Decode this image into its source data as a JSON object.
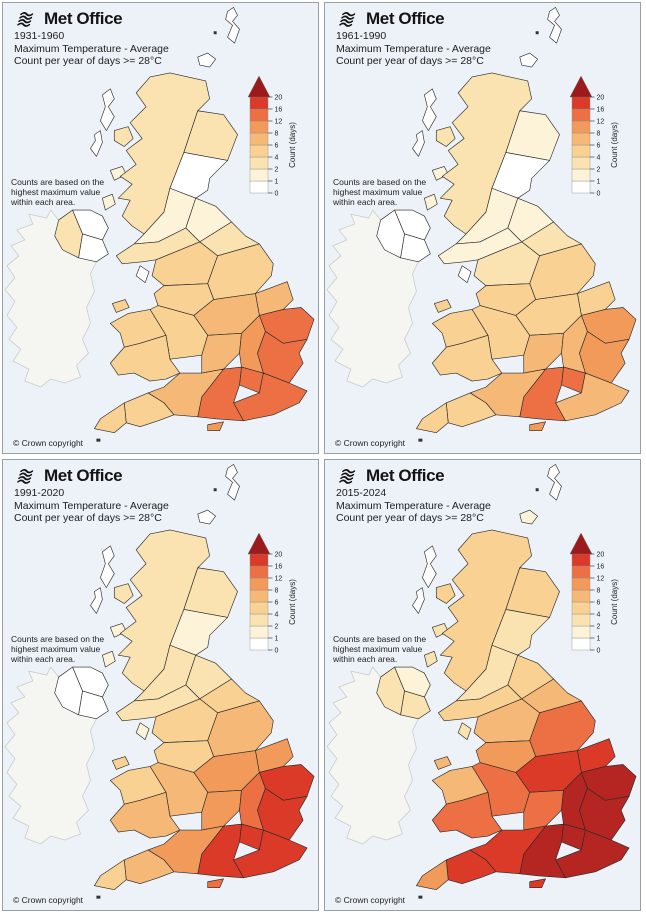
{
  "shared": {
    "brand": "Met Office",
    "subtitle_line1": "Maximum Temperature - Average",
    "subtitle_line2": "Count per year of days >= 28°C",
    "note": "Counts are based on the\nhighest maximum value\nwithin each area.",
    "copyright": "© Crown copyright"
  },
  "chart_data": {
    "type": "choropleth",
    "title": "Maximum Temperature - Average, Count per year of days >= 28°C",
    "layout": "2x2 grid of UK maps, one per period",
    "panels": [
      {
        "period": "1931-1960"
      },
      {
        "period": "1961-1990"
      },
      {
        "period": "1991-2020"
      },
      {
        "period": "2015-2024"
      }
    ],
    "legend": {
      "label": "Count (days)",
      "ticks": [
        0,
        1,
        2,
        4,
        6,
        8,
        12,
        16,
        20
      ],
      "bucket_ranges": [
        "0-1",
        "1-2",
        "2-4",
        "4-6",
        "6-8",
        "8-12",
        "12-16",
        "16-20",
        ">20"
      ],
      "bucket_colors": [
        "#ffffff",
        "#fdf3d8",
        "#fae3b1",
        "#f8d193",
        "#f6b877",
        "#f29a5a",
        "#ec7044",
        "#da3a27",
        "#b52521"
      ],
      "arrow_color": "#9c1a1c",
      "position": "top-right of each map, vertical bar with arrow cap"
    },
    "colors": {
      "sea": "#ecf2f7",
      "no_data_land": "#f5f5f1",
      "region_border": "#2b2b2b",
      "no_data_border": "#c7cdcc",
      "panel_border": "#98a0a6"
    },
    "region_buckets_note": "Per-region color-bucket index (into bucket_colors/bucket_ranges), estimated from map shading; array order follows panels[] (1931-1960, 1961-1990, 1991-2020, 2015-2024).",
    "region_buckets": {
      "shetland": [
        0,
        0,
        0,
        0
      ],
      "orkney": [
        0,
        0,
        0,
        1
      ],
      "outer_hebrides_north": [
        0,
        0,
        0,
        0
      ],
      "outer_hebrides_south": [
        0,
        0,
        0,
        0
      ],
      "skye": [
        2,
        2,
        2,
        3
      ],
      "mull": [
        1,
        1,
        1,
        2
      ],
      "islay": [
        1,
        1,
        1,
        2
      ],
      "highlands": [
        2,
        2,
        2,
        3
      ],
      "ne_scotland": [
        2,
        1,
        2,
        3
      ],
      "central_scotland": [
        0,
        0,
        1,
        2
      ],
      "sw_scotland": [
        1,
        1,
        2,
        2
      ],
      "se_scotland": [
        1,
        1,
        2,
        3
      ],
      "dumfries_galloway": [
        2,
        1,
        2,
        3
      ],
      "northumberland_durham": [
        2,
        2,
        3,
        4
      ],
      "cumbria": [
        3,
        2,
        3,
        4
      ],
      "yorkshire": [
        3,
        3,
        4,
        6
      ],
      "lancashire": [
        3,
        3,
        3,
        5
      ],
      "lincolnshire": [
        4,
        3,
        5,
        7
      ],
      "east_midlands": [
        4,
        3,
        5,
        7
      ],
      "cheshire_staffs_shrops": [
        3,
        3,
        4,
        6
      ],
      "west_midlands": [
        4,
        4,
        5,
        6
      ],
      "north_wales": [
        3,
        3,
        3,
        4
      ],
      "south_wales": [
        3,
        3,
        4,
        6
      ],
      "norfolk": [
        6,
        5,
        7,
        8
      ],
      "suffolk_essex": [
        6,
        5,
        7,
        8
      ],
      "cambs_beds_herts": [
        5,
        4,
        6,
        8
      ],
      "london": [
        6,
        6,
        7,
        8
      ],
      "kent_sussex_surrey": [
        6,
        4,
        7,
        8
      ],
      "hants_berks_oxon": [
        6,
        6,
        7,
        8
      ],
      "wilts_glos_somerset_dorset": [
        4,
        4,
        5,
        7
      ],
      "devon": [
        3,
        3,
        4,
        7
      ],
      "cornwall": [
        3,
        3,
        3,
        5
      ],
      "isle_of_man": [
        0,
        0,
        1,
        2
      ],
      "anglesey": [
        3,
        3,
        3,
        4
      ],
      "isle_of_wight": [
        5,
        5,
        6,
        7
      ],
      "ni_antrim_derry": [
        0,
        0,
        0,
        1
      ],
      "ni_down_armagh": [
        0,
        0,
        0,
        2
      ],
      "ni_tyrone_fermanagh": [
        2,
        0,
        0,
        2
      ]
    }
  }
}
